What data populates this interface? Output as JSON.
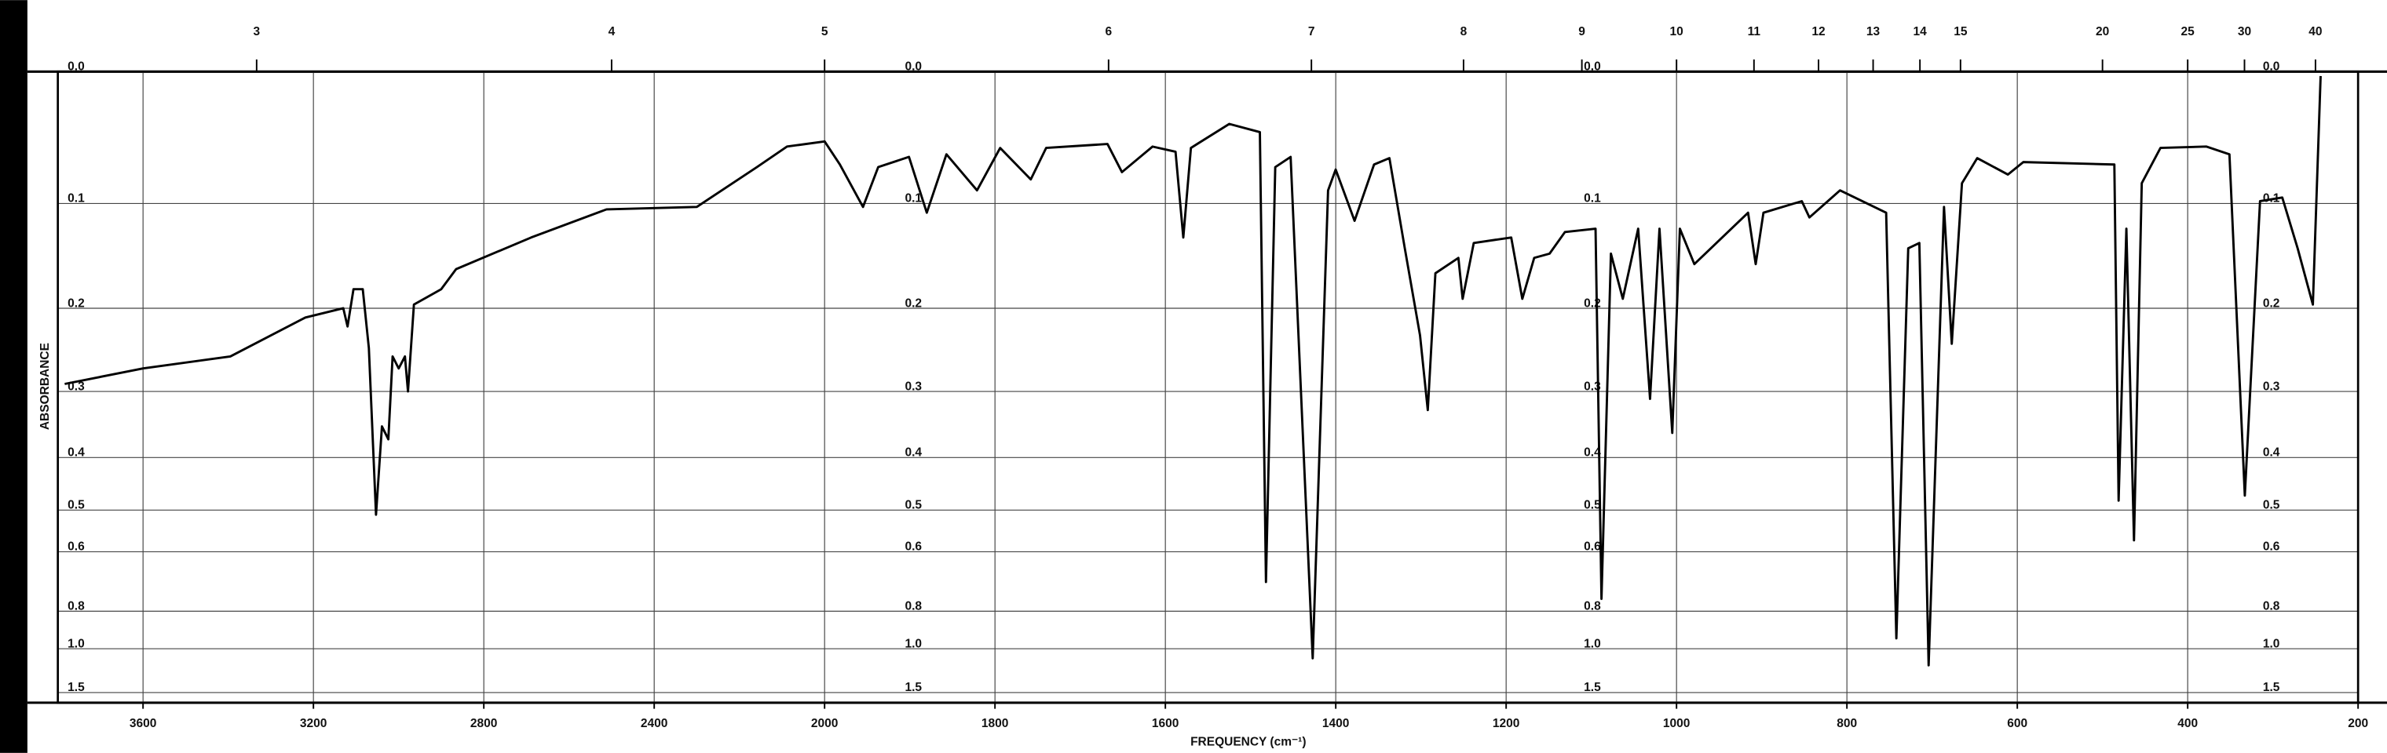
{
  "chart_data": {
    "type": "line",
    "xlabel": "FREQUENCY (cm⁻¹)",
    "ylabel": "ABSORBANCE",
    "y_scale": "absorbance",
    "color": "#000000",
    "grid": true,
    "xlim": [
      3800,
      200
    ],
    "xticks": [
      3600,
      3200,
      2800,
      2400,
      2000,
      1800,
      1600,
      1400,
      1200,
      1000,
      800,
      600,
      400,
      200
    ],
    "x2_transform": "wavelength_um",
    "x2ticks": [
      3,
      4,
      5,
      6,
      7,
      8,
      9,
      10,
      11,
      12,
      13,
      14,
      15,
      20,
      25,
      30,
      40
    ],
    "ylim": [
      0,
      1.8
    ],
    "yticks": [
      {
        "value": 0,
        "label": "0.0"
      },
      0.1,
      0.2,
      0.3,
      0.4,
      0.5,
      0.6,
      0.8,
      {
        "value": 1,
        "label": "1.0"
      },
      1.5
    ],
    "x": [
      3784,
      3600,
      3395,
      3219,
      3130,
      3120,
      3106,
      3084,
      3070,
      3053,
      3039,
      3024,
      3014,
      3000,
      2985,
      2978,
      2964,
      2900,
      2865,
      2689,
      2512,
      2300,
      2159,
      2088,
      2000,
      1982,
      1955,
      1937,
      1901,
      1880,
      1857,
      1821,
      1794,
      1758,
      1740,
      1668,
      1651,
      1615,
      1588,
      1579,
      1570,
      1525,
      1489,
      1482,
      1471,
      1453,
      1427,
      1409,
      1400,
      1378,
      1355,
      1337,
      1319,
      1301,
      1292,
      1283,
      1256,
      1251,
      1238,
      1194,
      1181,
      1167,
      1149,
      1131,
      1095,
      1088,
      1077,
      1063,
      1045,
      1031,
      1020,
      1005,
      996,
      979,
      916,
      907,
      898,
      853,
      844,
      808,
      754,
      742,
      728,
      715,
      704,
      686,
      677,
      665,
      647,
      611,
      593,
      486,
      481,
      472,
      463,
      454,
      432,
      378,
      351,
      333,
      315,
      289,
      271,
      253,
      244
    ],
    "values": [
      0.29,
      0.27,
      0.255,
      0.21,
      0.2,
      0.22,
      0.18,
      0.18,
      0.245,
      0.51,
      0.35,
      0.37,
      0.255,
      0.27,
      0.255,
      0.3,
      0.196,
      0.18,
      0.16,
      0.13,
      0.105,
      0.103,
      0.07,
      0.054,
      0.05,
      0.068,
      0.103,
      0.07,
      0.062,
      0.108,
      0.06,
      0.089,
      0.055,
      0.08,
      0.055,
      0.052,
      0.074,
      0.054,
      0.058,
      0.13,
      0.055,
      0.037,
      0.043,
      0.69,
      0.07,
      0.062,
      1.07,
      0.089,
      0.072,
      0.115,
      0.068,
      0.063,
      0.14,
      0.23,
      0.326,
      0.164,
      0.149,
      0.19,
      0.135,
      0.13,
      0.19,
      0.149,
      0.145,
      0.125,
      0.122,
      0.75,
      0.145,
      0.19,
      0.122,
      0.31,
      0.122,
      0.36,
      0.122,
      0.155,
      0.108,
      0.155,
      0.108,
      0.098,
      0.112,
      0.089,
      0.108,
      0.935,
      0.14,
      0.135,
      1.13,
      0.103,
      0.24,
      0.083,
      0.063,
      0.076,
      0.066,
      0.068,
      0.48,
      0.122,
      0.57,
      0.083,
      0.055,
      0.054,
      0.06,
      0.47,
      0.098,
      0.095,
      0.14,
      0.196,
      0.003
    ]
  }
}
